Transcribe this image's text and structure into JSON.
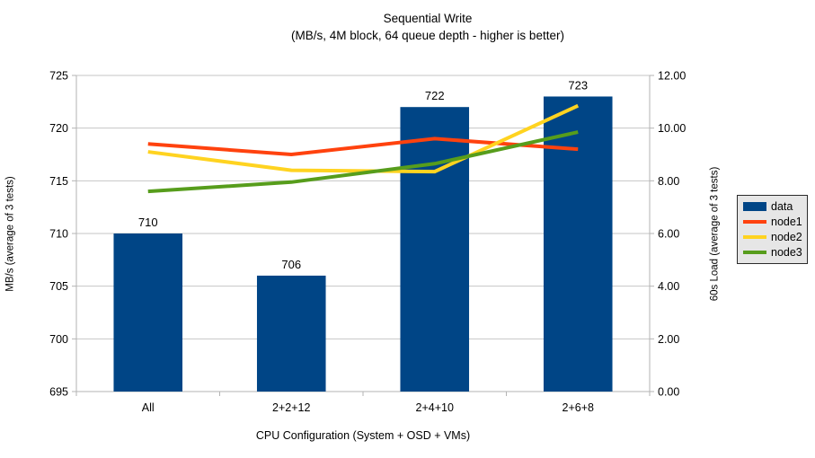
{
  "chart_data": {
    "type": "bar+line",
    "title": "Sequential Write",
    "subtitle": "(MB/s, 4M block, 64 queue depth - higher is better)",
    "xlabel": "CPU Configuration (System + OSD + VMs)",
    "ylabel_left": "MB/s (average of 3 tests)",
    "ylabel_right": "60s Load (average of 3 tests)",
    "categories": [
      "All",
      "2+2+12",
      "2+4+10",
      "2+6+8"
    ],
    "y_left_axis": {
      "min": 695,
      "max": 725,
      "step": 5,
      "decimals": 0
    },
    "y_right_axis": {
      "min": 0,
      "max": 12,
      "step": 2,
      "decimals": 2
    },
    "grid": "horizontal",
    "bar_series": {
      "name": "data",
      "axis": "left",
      "color": "#004586",
      "values": [
        710,
        706,
        722,
        723
      ],
      "data_labels": [
        "710",
        "706",
        "722",
        "723"
      ]
    },
    "line_series": [
      {
        "name": "node1",
        "axis": "right",
        "color": "#ff420e",
        "values": [
          9.4,
          9.0,
          9.6,
          9.2
        ]
      },
      {
        "name": "node2",
        "axis": "right",
        "color": "#ffd320",
        "values": [
          9.1,
          8.4,
          8.35,
          10.85
        ]
      },
      {
        "name": "node3",
        "axis": "right",
        "color": "#579d1c",
        "values": [
          7.6,
          7.95,
          8.65,
          9.85
        ]
      }
    ],
    "legend": {
      "position": "right",
      "background": "#e6e6e6",
      "border_color": "#2b2b2b",
      "items": [
        {
          "label": "data",
          "color": "#004586",
          "swatch": "box"
        },
        {
          "label": "node1",
          "color": "#ff420e",
          "swatch": "line"
        },
        {
          "label": "node2",
          "color": "#ffd320",
          "swatch": "line"
        },
        {
          "label": "node3",
          "color": "#579d1c",
          "swatch": "line"
        }
      ]
    },
    "colors": {
      "gridline": "#c6c6c6",
      "axis_line": "#b3b3b3",
      "text": "#000000",
      "background": "#ffffff"
    }
  }
}
